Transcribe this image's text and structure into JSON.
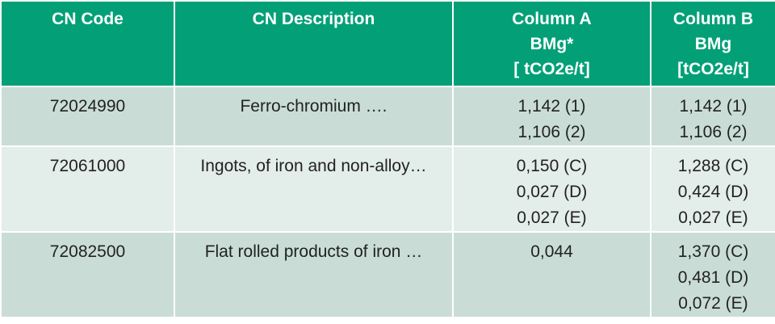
{
  "table": {
    "header": [
      [
        "CN Code"
      ],
      [
        "CN Description"
      ],
      [
        "Column A",
        "BMg*",
        "[ tCO2e/t]"
      ],
      [
        "Column B",
        "BMg",
        "[tCO2e/t]"
      ]
    ],
    "rows": [
      [
        [
          "72024990"
        ],
        [
          "Ferro-chromium …."
        ],
        [
          "1,142 (1)",
          "1,106 (2)"
        ],
        [
          "1,142 (1)",
          "1,106 (2)"
        ]
      ],
      [
        [
          "72061000"
        ],
        [
          "Ingots, of iron and non-alloy…"
        ],
        [
          "0,150 (C)",
          "0,027 (D)",
          "0,027 (E)"
        ],
        [
          "1,288 (C)",
          "0,424 (D)",
          "0,027 (E)"
        ]
      ],
      [
        [
          "72082500"
        ],
        [
          "Flat rolled products of iron …"
        ],
        [
          "0,044"
        ],
        [
          "1,370 (C)",
          "0,481 (D)",
          "0,072 (E)"
        ]
      ]
    ]
  }
}
